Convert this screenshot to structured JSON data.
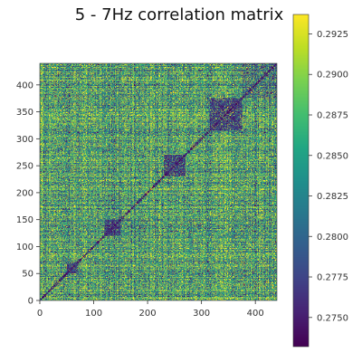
{
  "chart_data": {
    "type": "heatmap",
    "title": "5 - 7Hz correlation matrix",
    "xlabel": "",
    "ylabel": "",
    "size": 440,
    "xlim": [
      0,
      440
    ],
    "ylim": [
      0,
      440
    ],
    "x_ticks": [
      0,
      100,
      200,
      300,
      400
    ],
    "y_ticks": [
      0,
      50,
      100,
      150,
      200,
      250,
      300,
      350,
      400
    ],
    "origin": "lower",
    "colormap": "viridis",
    "colorbar": {
      "range": [
        0.2732,
        0.2937
      ],
      "ticks": [
        "0.2750",
        "0.2775",
        "0.2800",
        "0.2825",
        "0.2850",
        "0.2875",
        "0.2900",
        "0.2925"
      ]
    },
    "diagonal_value": 0.273,
    "value_distribution": {
      "min": 0.2732,
      "max": 0.2937,
      "typical_mean": 0.2855
    },
    "blocks": [
      {
        "range": [
          315,
          375
        ],
        "level": "low"
      },
      {
        "range": [
          230,
          270
        ],
        "level": "low"
      },
      {
        "range": [
          120,
          150
        ],
        "level": "low"
      },
      {
        "range": [
          50,
          70
        ],
        "level": "low"
      },
      {
        "range": [
          375,
          440
        ],
        "level": "mixed"
      }
    ]
  },
  "colors": {
    "background": "#ffffff",
    "text": "#333333",
    "axis": "#333333"
  }
}
